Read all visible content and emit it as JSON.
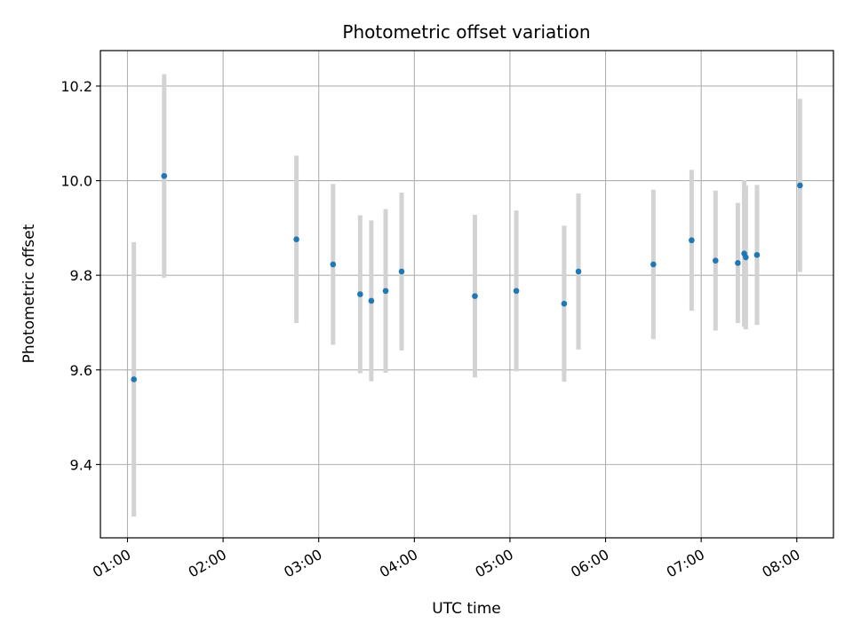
{
  "chart_data": {
    "type": "scatter",
    "title": "Photometric offset variation",
    "xlabel": "UTC time",
    "ylabel": "Photometric offset",
    "x_tick_labels": [
      "01:00",
      "02:00",
      "03:00",
      "04:00",
      "05:00",
      "06:00",
      "07:00",
      "08:00"
    ],
    "y_tick_labels": [
      "9.4",
      "9.6",
      "9.8",
      "10.0",
      "10.2"
    ],
    "xlim": [
      "00:43",
      "08:23"
    ],
    "ylim": [
      9.245,
      10.275
    ],
    "grid": true,
    "marker_color": "#1f77b4",
    "errorbar_color": "#d3d3d3",
    "points": [
      {
        "x": "01:04",
        "y": 9.58,
        "err": 0.29
      },
      {
        "x": "01:23",
        "y": 10.01,
        "err": 0.215
      },
      {
        "x": "02:46",
        "y": 9.876,
        "err": 0.177
      },
      {
        "x": "03:09",
        "y": 9.823,
        "err": 0.17
      },
      {
        "x": "03:26",
        "y": 9.76,
        "err": 0.167
      },
      {
        "x": "03:33",
        "y": 9.746,
        "err": 0.17
      },
      {
        "x": "03:42",
        "y": 9.767,
        "err": 0.173
      },
      {
        "x": "03:52",
        "y": 9.808,
        "err": 0.167
      },
      {
        "x": "04:38",
        "y": 9.756,
        "err": 0.172
      },
      {
        "x": "05:04",
        "y": 9.767,
        "err": 0.17
      },
      {
        "x": "05:34",
        "y": 9.74,
        "err": 0.165
      },
      {
        "x": "05:43",
        "y": 9.808,
        "err": 0.165
      },
      {
        "x": "06:30",
        "y": 9.823,
        "err": 0.158
      },
      {
        "x": "06:54",
        "y": 9.874,
        "err": 0.149
      },
      {
        "x": "07:09",
        "y": 9.831,
        "err": 0.148
      },
      {
        "x": "07:23",
        "y": 9.826,
        "err": 0.127
      },
      {
        "x": "07:27",
        "y": 9.846,
        "err": 0.155
      },
      {
        "x": "07:28",
        "y": 9.838,
        "err": 0.152
      },
      {
        "x": "07:35",
        "y": 9.843,
        "err": 0.148
      },
      {
        "x": "08:02",
        "y": 9.99,
        "err": 0.183
      }
    ]
  }
}
